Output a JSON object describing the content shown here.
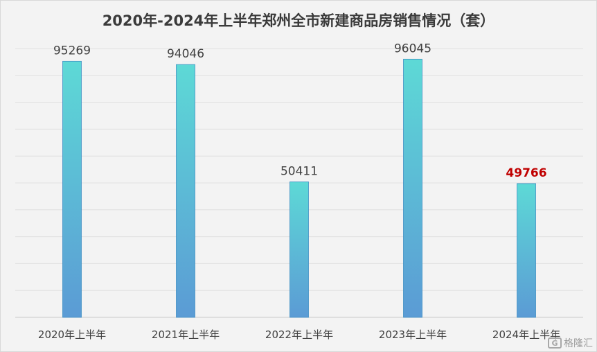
{
  "chart_data": {
    "type": "bar",
    "title": "2020年-2024年上半年郑州全市新建商品房销售情况（套）",
    "categories": [
      "2020年上半年",
      "2021年上半年",
      "2022年上半年",
      "2023年上半年",
      "2024年上半年"
    ],
    "values": [
      95269,
      94046,
      50411,
      96045,
      49766
    ],
    "highlight_index": 4,
    "highlight_color": "#c00000",
    "bar_gradient": [
      "#5dd9d6",
      "#5b9bd5"
    ],
    "xlabel": "",
    "ylabel": "",
    "ylim": [
      0,
      100000
    ],
    "grid": true,
    "legend": "none"
  },
  "watermark": {
    "logo": "G",
    "text": "格隆汇"
  }
}
